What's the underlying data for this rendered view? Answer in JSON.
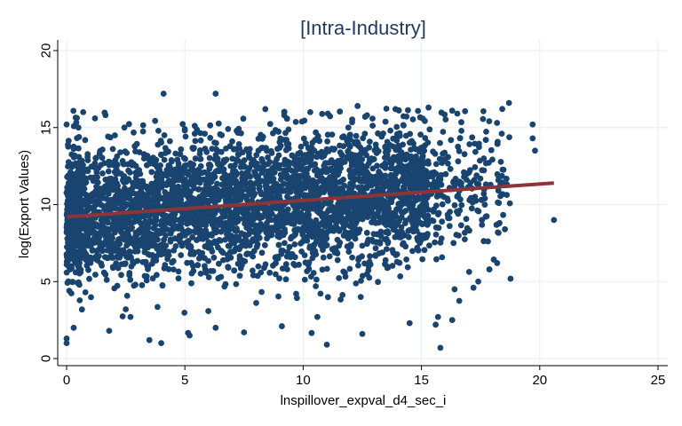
{
  "chart_data": {
    "type": "scatter",
    "title": "[Intra-Industry]",
    "xlabel": "lnspillover_expval_d4_sec_i",
    "ylabel": "log(Export Values)",
    "xlim": [
      0,
      25
    ],
    "ylim": [
      0,
      20
    ],
    "xticks": [
      "0",
      "5",
      "10",
      "15",
      "20",
      "25"
    ],
    "yticks": [
      "0",
      "5",
      "10",
      "15",
      "20"
    ],
    "grid": true,
    "colors": {
      "title": "#1f3a5c",
      "points": "#1a4470",
      "fit_line": "#8c3438",
      "grid": "#e8eef2",
      "background": "#ffffff"
    },
    "series": [
      {
        "type": "scatter",
        "points": [
          [
            4.1,
            17.2
          ],
          [
            6.3,
            17.2
          ],
          [
            18.7,
            16.6
          ],
          [
            19.7,
            15.2
          ],
          [
            19.8,
            13.5
          ],
          [
            19.7,
            14.3
          ],
          [
            20.6,
            9.0
          ],
          [
            18.3,
            8.8
          ],
          [
            18.2,
            6.2
          ],
          [
            17.4,
            5.0
          ],
          [
            17.2,
            4.6
          ],
          [
            16.8,
            11.8
          ],
          [
            16.4,
            4.5
          ],
          [
            16.3,
            2.5
          ],
          [
            15.7,
            2.7
          ],
          [
            15.6,
            2.2
          ],
          [
            15.8,
            0.7
          ],
          [
            11.0,
            0.9
          ],
          [
            3.5,
            1.2
          ],
          [
            4.0,
            1.0
          ],
          [
            0.0,
            1.0
          ],
          [
            0.0,
            1.3
          ],
          [
            0.3,
            2.0
          ],
          [
            0.0,
            15.2
          ],
          [
            0.5,
            15.0
          ],
          [
            0.7,
            16.0
          ],
          [
            1.2,
            15.6
          ],
          [
            8.4,
            16.2
          ],
          [
            9.2,
            15.8
          ],
          [
            10.3,
            16.0
          ],
          [
            12.3,
            16.4
          ],
          [
            12.7,
            15.8
          ],
          [
            13.9,
            16.2
          ],
          [
            15.3,
            16.3
          ],
          [
            16.3,
            16.1
          ],
          [
            2.7,
            2.7
          ],
          [
            5.2,
            1.5
          ],
          [
            7.5,
            1.7
          ],
          [
            6.3,
            2.0
          ],
          [
            12.5,
            1.6
          ],
          [
            14.5,
            2.3
          ],
          [
            10.6,
            2.7
          ],
          [
            9.1,
            2.1
          ],
          [
            1.8,
            1.8
          ],
          [
            2.5,
            3.2
          ]
        ]
      },
      {
        "type": "line",
        "name": "",
        "points": [
          [
            0,
            9.2
          ],
          [
            20.6,
            11.4
          ]
        ]
      }
    ]
  }
}
